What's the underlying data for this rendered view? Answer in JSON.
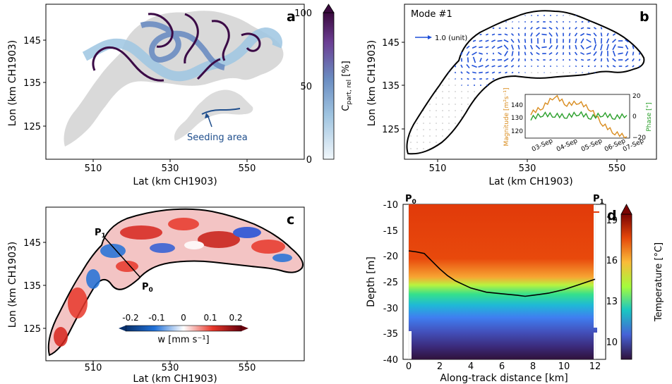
{
  "panels": {
    "a": {
      "letter": "a",
      "xlabel": "Lat (km CH1903)",
      "ylabel": "Lon (km CH1903)",
      "xticks": [
        "510",
        "530",
        "550"
      ],
      "yticks": [
        "145",
        "135",
        "125"
      ],
      "annotation": "Seeding area",
      "colorbar": {
        "ticks": [
          "100",
          "50",
          "0"
        ],
        "label_main": "C",
        "label_sub": "part, rel",
        "label_unit": " [%]",
        "range": [
          0,
          100
        ],
        "colors": [
          "#f1f7fb",
          "#9fc4e0",
          "#6a8cc1",
          "#6b3e93",
          "#3b0a3f"
        ]
      },
      "colors": {
        "lake": "#d9d9d9",
        "particles_light": "#9ec6e2",
        "particles_dark": "#3b0a46",
        "seed": "#1f4e8c"
      }
    },
    "b": {
      "letter": "b",
      "title": "Mode #1",
      "legend_label": "1.0 (unit)",
      "xlabel": "Lat (km CH1903)",
      "ylabel": "Lon (km CH1903)",
      "xticks": [
        "510",
        "530",
        "550"
      ],
      "yticks": [
        "145",
        "135",
        "125"
      ],
      "inset": {
        "ylabel_left": "Magnitude [m²s⁻¹]",
        "ylabel_right": "Phase [°]",
        "yticks_left": [
          "140",
          "130",
          "120"
        ],
        "yticks_right": [
          "20",
          "0",
          "−20"
        ],
        "xticks": [
          "03-Sep",
          "04-Sep",
          "05-Sep",
          "06-Sep",
          "07-Sep"
        ],
        "colors": {
          "magnitude": "#d98c1e",
          "phase": "#2ca02c"
        }
      },
      "colors": {
        "arrows": "#1f4fd8"
      }
    },
    "c": {
      "letter": "c",
      "xlabel": "Lat (km CH1903)",
      "ylabel": "Lon (km CH1903)",
      "xticks": [
        "510",
        "530",
        "550"
      ],
      "yticks": [
        "145",
        "135",
        "125"
      ],
      "p0": "P",
      "p0_sub": "0",
      "p1": "P",
      "p1_sub": "1",
      "colorbar": {
        "ticks": [
          "-0.2",
          "-0.1",
          "0",
          "0.1",
          "0.2"
        ],
        "label": "w [mm s⁻¹]",
        "range": [
          -0.2,
          0.2
        ],
        "colors": [
          "#08306b",
          "#2171d8",
          "#ffffff",
          "#e8382b",
          "#67000d"
        ]
      }
    },
    "d": {
      "letter": "d",
      "xlabel": "Along-track distance [km]",
      "ylabel": "Depth [m]",
      "xticks": [
        "0",
        "2",
        "4",
        "6",
        "8",
        "10",
        "12"
      ],
      "yticks": [
        "-10",
        "-15",
        "-20",
        "-25",
        "-30",
        "-35",
        "-40"
      ],
      "p0": "P",
      "p0_sub": "0",
      "p1": "P",
      "p1_sub": "1",
      "colorbar": {
        "ticks": [
          "19",
          "16",
          "13",
          "10"
        ],
        "label": "Temperature [°C]",
        "range": [
          9,
          19.8
        ],
        "colors": [
          "#30123b",
          "#4662d7",
          "#1ac7c2",
          "#a4fc3c",
          "#fabb39",
          "#e4460a",
          "#7a0403"
        ]
      }
    }
  },
  "chart_data": [
    {
      "type": "heatmap",
      "panel": "a",
      "description_of_variable": "C part,rel [%]",
      "xlabel": "Lat (km CH1903)",
      "ylabel": "Lon (km CH1903)",
      "xticks": [
        510,
        530,
        550
      ],
      "yticks": [
        125,
        135,
        145
      ],
      "colorbar_range": [
        0,
        100
      ],
      "colorbar_ticks": [
        0,
        50,
        100
      ],
      "annotation": "Seeding area"
    },
    {
      "type": "line",
      "panel": "b-inset",
      "x": [
        "03-Sep",
        "03.5",
        "04-Sep",
        "04.5",
        "05-Sep",
        "05.5",
        "06-Sep",
        "06.5",
        "07-Sep"
      ],
      "series": [
        {
          "name": "Magnitude",
          "values": [
            134,
            139,
            148,
            141,
            143,
            137,
            125,
            118,
            115
          ]
        },
        {
          "name": "Phase",
          "values": [
            -2,
            2,
            1,
            0,
            3,
            -1,
            2,
            -1,
            1
          ]
        }
      ],
      "ylim_left": [
        115,
        148
      ],
      "ylim_right": [
        -20,
        20
      ]
    },
    {
      "type": "heatmap",
      "panel": "c",
      "xlabel": "Lat (km CH1903)",
      "ylabel": "Lon (km CH1903)",
      "xticks": [
        510,
        530,
        550
      ],
      "yticks": [
        125,
        135,
        145
      ],
      "colorbar_range": [
        -0.2,
        0.2
      ],
      "colorbar_ticks": [
        -0.2,
        -0.1,
        0,
        0.1,
        0.2
      ]
    },
    {
      "type": "heatmap",
      "panel": "d",
      "xlabel": "Along-track distance [km]",
      "ylabel": "Depth [m]",
      "xlim": [
        -0.5,
        13.5
      ],
      "ylim": [
        -40,
        -10
      ],
      "colorbar_range": [
        9,
        19.8
      ],
      "colorbar_ticks": [
        10,
        13,
        16,
        19
      ],
      "isotherm_line": {
        "x": [
          0,
          0.5,
          1,
          1.5,
          2,
          2.5,
          3,
          3.5,
          4,
          5,
          6,
          7,
          7.5,
          8,
          9,
          10,
          11,
          12
        ],
        "y": [
          -19,
          -19.2,
          -19.5,
          -21,
          -22.5,
          -23.8,
          -24.8,
          -25.5,
          -26.2,
          -27,
          -27.3,
          -27.6,
          -27.8,
          -27.6,
          -27.2,
          -26.5,
          -25.5,
          -24.5
        ]
      }
    }
  ]
}
